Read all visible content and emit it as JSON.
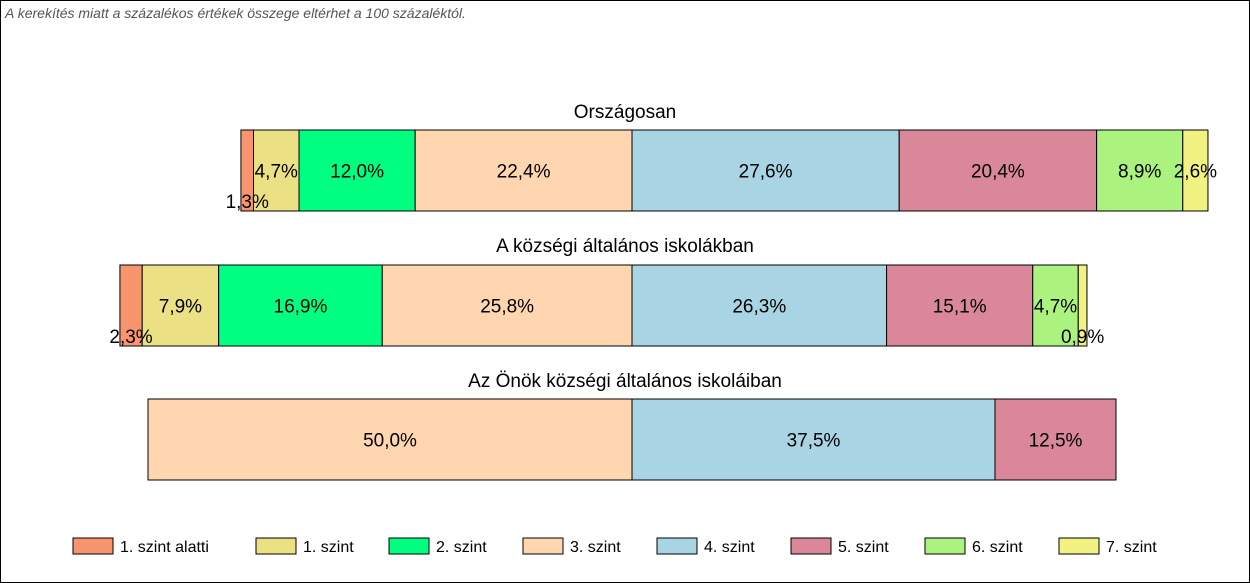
{
  "note": "A kerekítés miatt a  százalékos értékek összege eltérhet a 100 százaléktól.",
  "chart_data": {
    "type": "bar",
    "orientation": "horizontal-stacked-100",
    "legend_position": "bottom",
    "series": [
      {
        "name": "1. szint alatti",
        "color": "#F7956F"
      },
      {
        "name": "1. szint",
        "color": "#EBE084"
      },
      {
        "name": "2. szint",
        "color": "#00FF80"
      },
      {
        "name": "3. szint",
        "color": "#FFD6B0"
      },
      {
        "name": "4. szint",
        "color": "#A8D4E3"
      },
      {
        "name": "5. szint",
        "color": "#D98799"
      },
      {
        "name": "6. szint",
        "color": "#ACF27E"
      },
      {
        "name": "7. szint",
        "color": "#F2F283"
      }
    ],
    "bars": [
      {
        "title": "Országosan",
        "values": [
          1.3,
          4.7,
          12.0,
          22.4,
          27.6,
          20.4,
          8.9,
          2.6
        ],
        "labels": [
          "1,3%",
          "4,7%",
          "12,0%",
          "22,4%",
          "27,6%",
          "20,4%",
          "8,9%",
          "2,6%"
        ]
      },
      {
        "title": "A községi általános iskolákban",
        "values": [
          2.3,
          7.9,
          16.9,
          25.8,
          26.3,
          15.1,
          4.7,
          0.9
        ],
        "labels": [
          "2,3%",
          "7,9%",
          "16,9%",
          "25,8%",
          "26,3%",
          "15,1%",
          "4,7%",
          "0,9%"
        ]
      },
      {
        "title": "Az Önök községi általános iskoláiban",
        "values": [
          0,
          0,
          0,
          50.0,
          37.5,
          12.5,
          0,
          0
        ],
        "labels": [
          "",
          "",
          "",
          "50,0%",
          "37,5%",
          "12,5%",
          "",
          ""
        ]
      }
    ]
  }
}
